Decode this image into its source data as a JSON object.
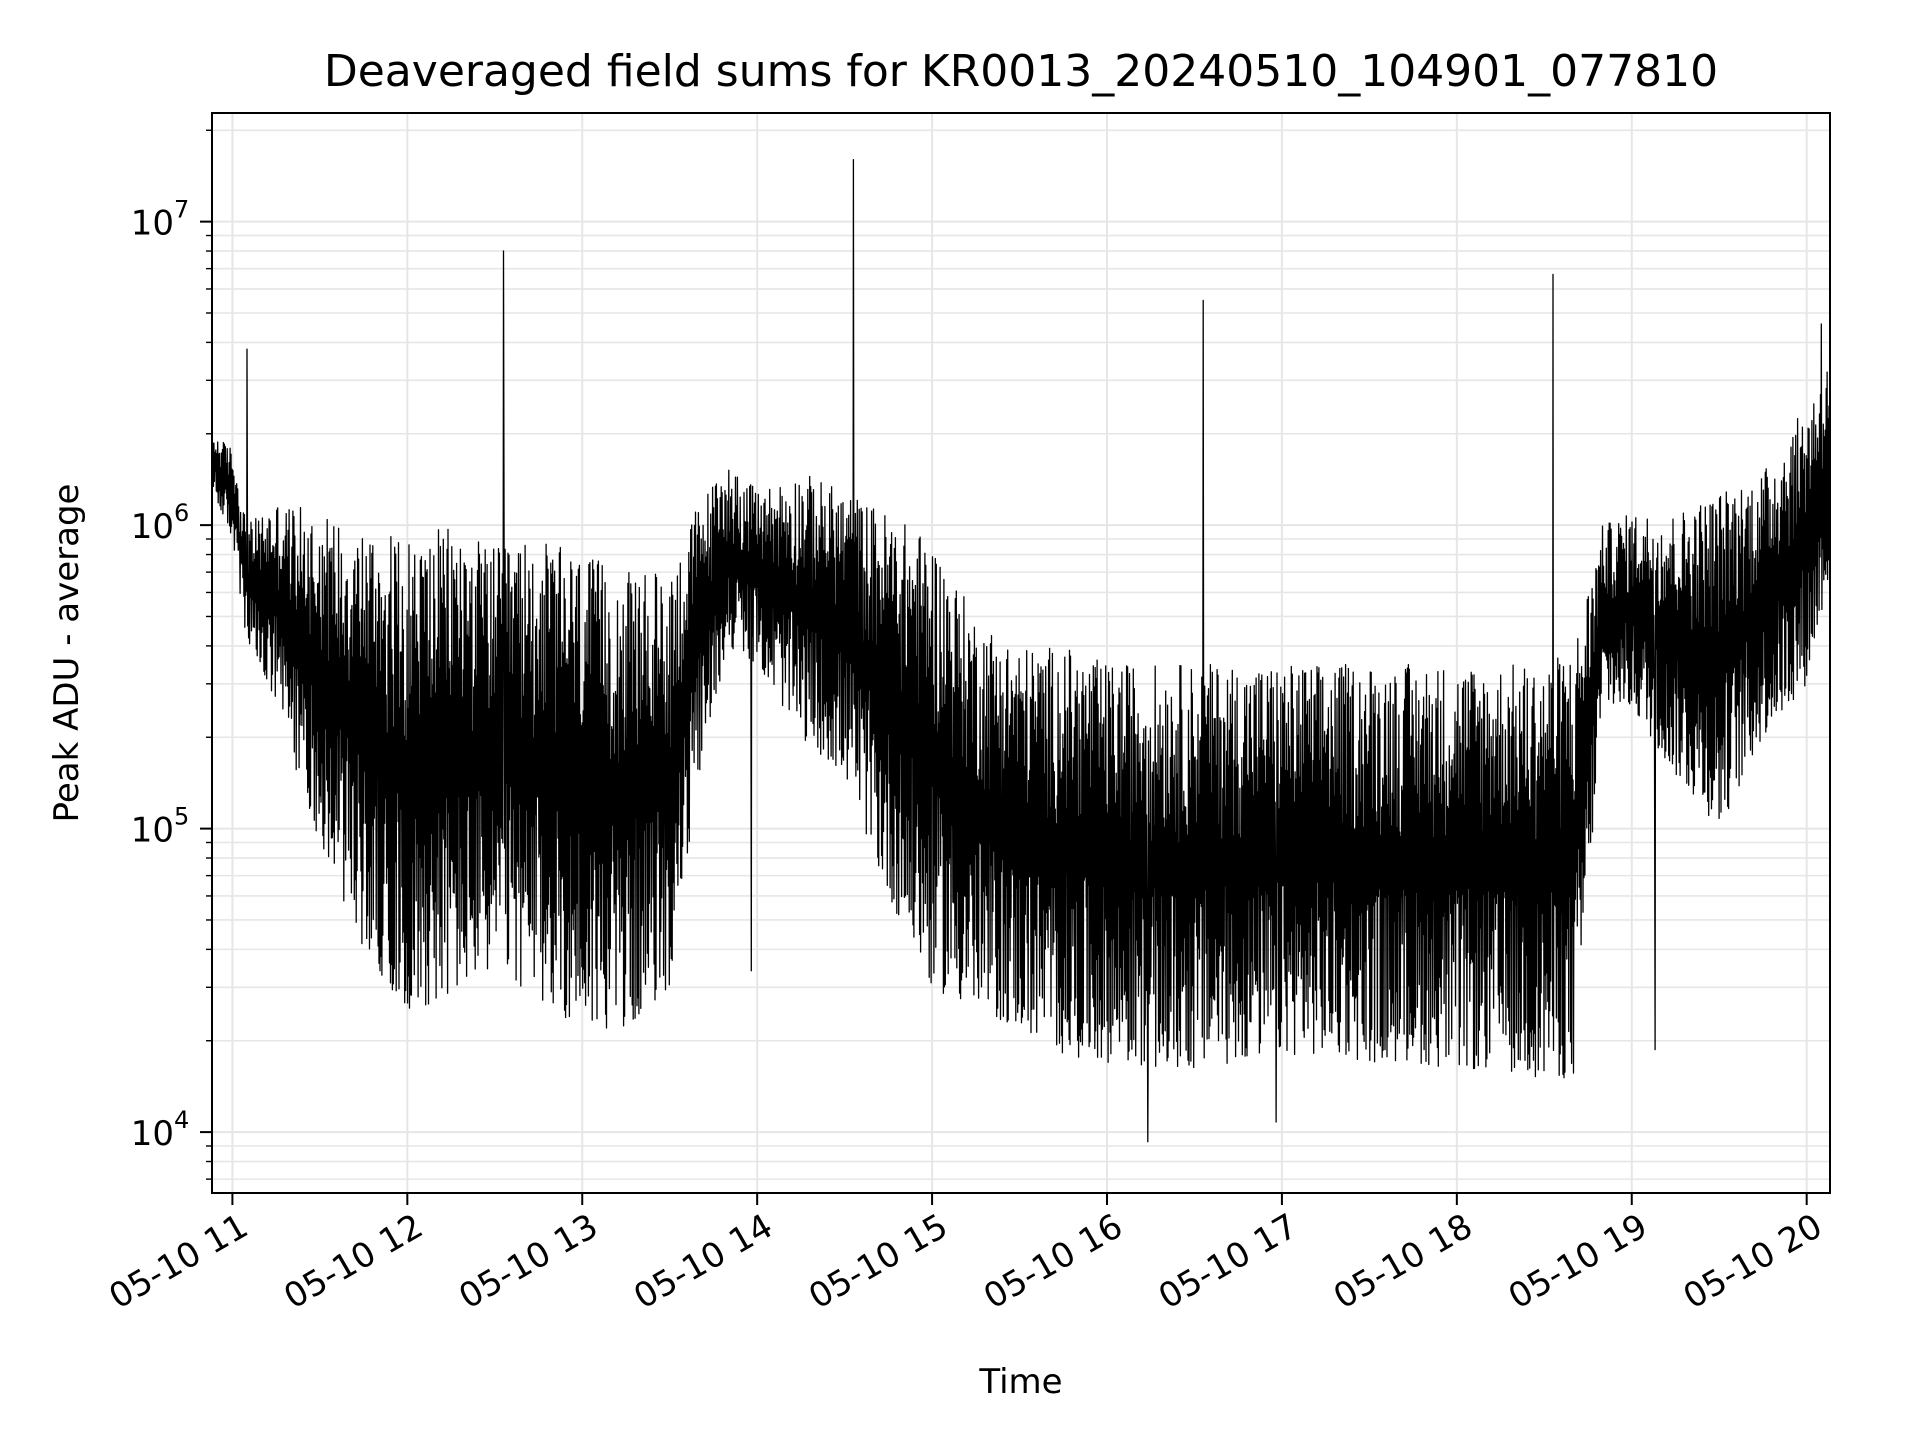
{
  "chart_data": {
    "type": "line",
    "title": "Deaveraged field sums for KR0013_20240510_104901_077810",
    "xlabel": "Time",
    "ylabel": "Peak ADU - average",
    "yscale": "log",
    "grid": true,
    "line_color": "#000000",
    "grid_color": "#e6e6e6",
    "xlim": [
      "05-10 10:53",
      "05-10 20:08"
    ],
    "ylim": [
      6300,
      22800000
    ],
    "x_ticks": [
      {
        "label": "05-10 11",
        "time": "11:00"
      },
      {
        "label": "05-10 12",
        "time": "12:00"
      },
      {
        "label": "05-10 13",
        "time": "13:00"
      },
      {
        "label": "05-10 14",
        "time": "14:00"
      },
      {
        "label": "05-10 15",
        "time": "15:00"
      },
      {
        "label": "05-10 16",
        "time": "16:00"
      },
      {
        "label": "05-10 17",
        "time": "17:00"
      },
      {
        "label": "05-10 18",
        "time": "18:00"
      },
      {
        "label": "05-10 19",
        "time": "19:00"
      },
      {
        "label": "05-10 20",
        "time": "20:00"
      }
    ],
    "y_ticks": [
      {
        "value": 10000,
        "base": "10",
        "exp": "4"
      },
      {
        "value": 100000,
        "base": "10",
        "exp": "5"
      },
      {
        "value": 1000000,
        "base": "10",
        "exp": "6"
      },
      {
        "value": 10000000,
        "base": "10",
        "exp": "7"
      }
    ],
    "series": [
      {
        "envelope": {
          "times": [
            "10:53",
            "11:00",
            "11:05",
            "11:15",
            "11:30",
            "11:45",
            "12:00",
            "12:15",
            "12:30",
            "12:45",
            "13:00",
            "13:15",
            "13:30",
            "13:40",
            "13:50",
            "14:00",
            "14:15",
            "14:30",
            "14:45",
            "15:00",
            "15:15",
            "15:30",
            "15:45",
            "16:00",
            "16:15",
            "16:30",
            "16:45",
            "17:00",
            "17:15",
            "17:30",
            "17:45",
            "18:00",
            "18:15",
            "18:30",
            "18:40",
            "18:50",
            "19:00",
            "19:15",
            "19:30",
            "19:45",
            "20:00",
            "20:08"
          ],
          "upper": [
            2000000,
            1800000,
            1000000,
            1200000,
            1100000,
            1000000,
            900000,
            1000000,
            850000,
            900000,
            800000,
            700000,
            700000,
            1200000,
            1600000,
            1300000,
            1500000,
            1300000,
            1100000,
            900000,
            500000,
            400000,
            400000,
            350000,
            350000,
            350000,
            350000,
            350000,
            350000,
            350000,
            350000,
            350000,
            350000,
            350000,
            400000,
            1000000,
            1100000,
            1100000,
            1300000,
            1500000,
            2500000,
            3500000
          ],
          "lower": [
            1300000,
            900000,
            400000,
            250000,
            90000,
            40000,
            25000,
            28000,
            35000,
            27000,
            22000,
            22000,
            30000,
            150000,
            400000,
            350000,
            200000,
            150000,
            60000,
            30000,
            25000,
            22000,
            18000,
            17000,
            16000,
            16000,
            17000,
            18000,
            18000,
            17000,
            17000,
            16000,
            16000,
            15000,
            15000,
            250000,
            250000,
            150000,
            100000,
            200000,
            300000,
            700000
          ]
        },
        "spikes": [
          {
            "time": "11:05",
            "value": 3800000
          },
          {
            "time": "12:33",
            "value": 8000000
          },
          {
            "time": "14:33",
            "value": 16000000
          },
          {
            "time": "16:33",
            "value": 5500000
          },
          {
            "time": "18:33",
            "value": 6700000
          },
          {
            "time": "20:05",
            "value": 4600000
          }
        ],
        "dips": [
          {
            "time": "13:58",
            "value": 34000
          },
          {
            "time": "16:14",
            "value": 9300
          },
          {
            "time": "16:58",
            "value": 10800
          },
          {
            "time": "19:08",
            "value": 18700
          }
        ]
      }
    ]
  }
}
